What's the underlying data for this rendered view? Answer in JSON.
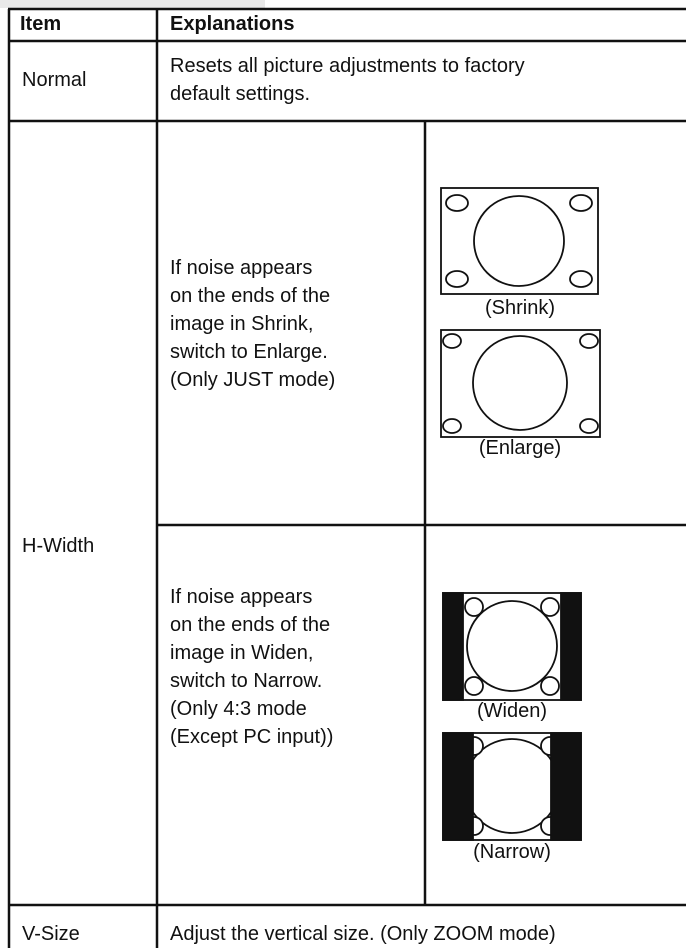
{
  "table": {
    "header": [
      "Item",
      "Explanations"
    ],
    "rows": [
      {
        "item": "Normal",
        "text": [
          "Resets all picture adjustments to factory",
          "default settings."
        ]
      },
      {
        "item": "H-Width",
        "subrows": [
          {
            "text": [
              "If noise appears",
              "on the ends of the",
              "image in Shrink,",
              "switch to Enlarge.",
              "(Only JUST mode)"
            ],
            "figures": [
              "(Shrink)",
              "(Enlarge)"
            ]
          },
          {
            "text": [
              "If noise appears",
              "on the ends of the",
              "image in Widen,",
              "switch to Narrow.",
              "(Only 4:3 mode",
              "(Except PC input))"
            ],
            "figures": [
              "(Widen)",
              "(Narrow)"
            ]
          }
        ]
      },
      {
        "item": "V-Size",
        "text": [
          "Adjust the vertical size. (Only ZOOM mode)"
        ]
      }
    ]
  }
}
